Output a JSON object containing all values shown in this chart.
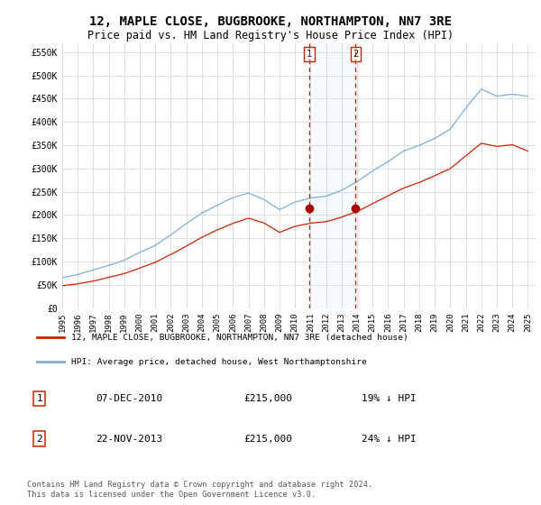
{
  "title": "12, MAPLE CLOSE, BUGBROOKE, NORTHAMPTON, NN7 3RE",
  "subtitle": "Price paid vs. HM Land Registry's House Price Index (HPI)",
  "title_fontsize": 10,
  "subtitle_fontsize": 8.5,
  "ylabel_ticks": [
    "£0",
    "£50K",
    "£100K",
    "£150K",
    "£200K",
    "£250K",
    "£300K",
    "£350K",
    "£400K",
    "£450K",
    "£500K",
    "£550K"
  ],
  "ytick_values": [
    0,
    50000,
    100000,
    150000,
    200000,
    250000,
    300000,
    350000,
    400000,
    450000,
    500000,
    550000
  ],
  "ylim": [
    0,
    570000
  ],
  "xlim_start": 1995.0,
  "xlim_end": 2025.5,
  "hpi_color": "#7bafd4",
  "price_color": "#cc2200",
  "marker_color": "#aa0000",
  "vline_color": "#cc2200",
  "grid_color": "#dddddd",
  "bg_color": "#ffffff",
  "transaction1_x": 2010.92,
  "transaction1_y": 215000,
  "transaction2_x": 2013.9,
  "transaction2_y": 215000,
  "legend_red_label": "12, MAPLE CLOSE, BUGBROOKE, NORTHAMPTON, NN7 3RE (detached house)",
  "legend_blue_label": "HPI: Average price, detached house, West Northamptonshire",
  "table_rows": [
    {
      "num": "1",
      "date": "07-DEC-2010",
      "price": "£215,000",
      "hpi": "19% ↓ HPI"
    },
    {
      "num": "2",
      "date": "22-NOV-2013",
      "price": "£215,000",
      "hpi": "24% ↓ HPI"
    }
  ],
  "footnote": "Contains HM Land Registry data © Crown copyright and database right 2024.\nThis data is licensed under the Open Government Licence v3.0."
}
